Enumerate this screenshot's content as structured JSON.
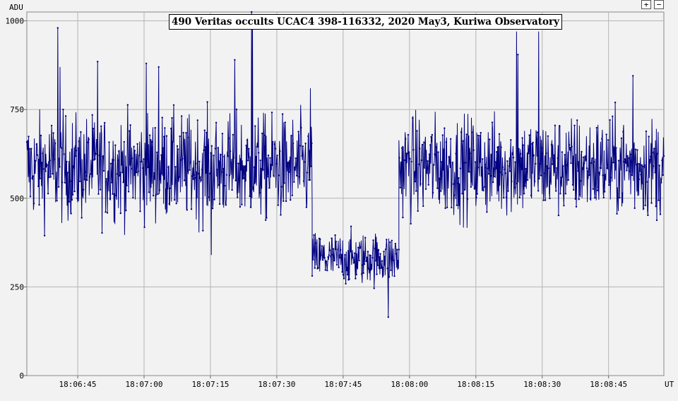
{
  "chart_data": {
    "type": "line",
    "title": "490 Veritas occults UCAC4 398-116332, 2020 May3, Kuriwa Observatory",
    "xlabel": "UT",
    "ylabel": "ADU",
    "ylim": [
      0,
      1025
    ],
    "xlim": [
      "18:06:33.5",
      "18:08:57.5"
    ],
    "y_ticks": [
      "0",
      "250",
      "500",
      "750",
      "1000"
    ],
    "x_ticks": [
      "18:06:45",
      "18:07:00",
      "18:07:15",
      "18:07:30",
      "18:07:45",
      "18:08:00",
      "18:08:15",
      "18:08:30",
      "18:08:45"
    ],
    "grid": true,
    "series": [
      {
        "color": "#000080",
        "marker": "dot",
        "sampling_interval_s": 0.1,
        "segments": [
          {
            "x_start": "18:06:33.5",
            "x_end": "18:07:38.0",
            "mean": 585,
            "spread": 120
          },
          {
            "x_start": "18:07:38.0",
            "x_end": "18:07:57.6",
            "mean": 330,
            "spread": 60
          },
          {
            "x_start": "18:07:57.6",
            "x_end": "18:08:57.5",
            "mean": 590,
            "spread": 115
          }
        ],
        "notable_points": [
          {
            "x": "18:06:40.5",
            "y": 980
          },
          {
            "x": "18:06:41.0",
            "y": 870
          },
          {
            "x": "18:06:49.5",
            "y": 885
          },
          {
            "x": "18:07:00.5",
            "y": 880
          },
          {
            "x": "18:07:03.3",
            "y": 870
          },
          {
            "x": "18:07:15.2",
            "y": 340
          },
          {
            "x": "18:07:20.5",
            "y": 890
          },
          {
            "x": "18:07:24.3",
            "y": 1025
          },
          {
            "x": "18:07:24.5",
            "y": 1015
          },
          {
            "x": "18:07:37.6",
            "y": 810
          },
          {
            "x": "18:07:55.2",
            "y": 165
          },
          {
            "x": "18:08:24.2",
            "y": 970
          },
          {
            "x": "18:08:24.5",
            "y": 905
          },
          {
            "x": "18:08:29.2",
            "y": 970
          },
          {
            "x": "18:08:50.5",
            "y": 845
          }
        ]
      }
    ]
  },
  "controls": {
    "zoom_in": "+",
    "zoom_out": "−"
  }
}
